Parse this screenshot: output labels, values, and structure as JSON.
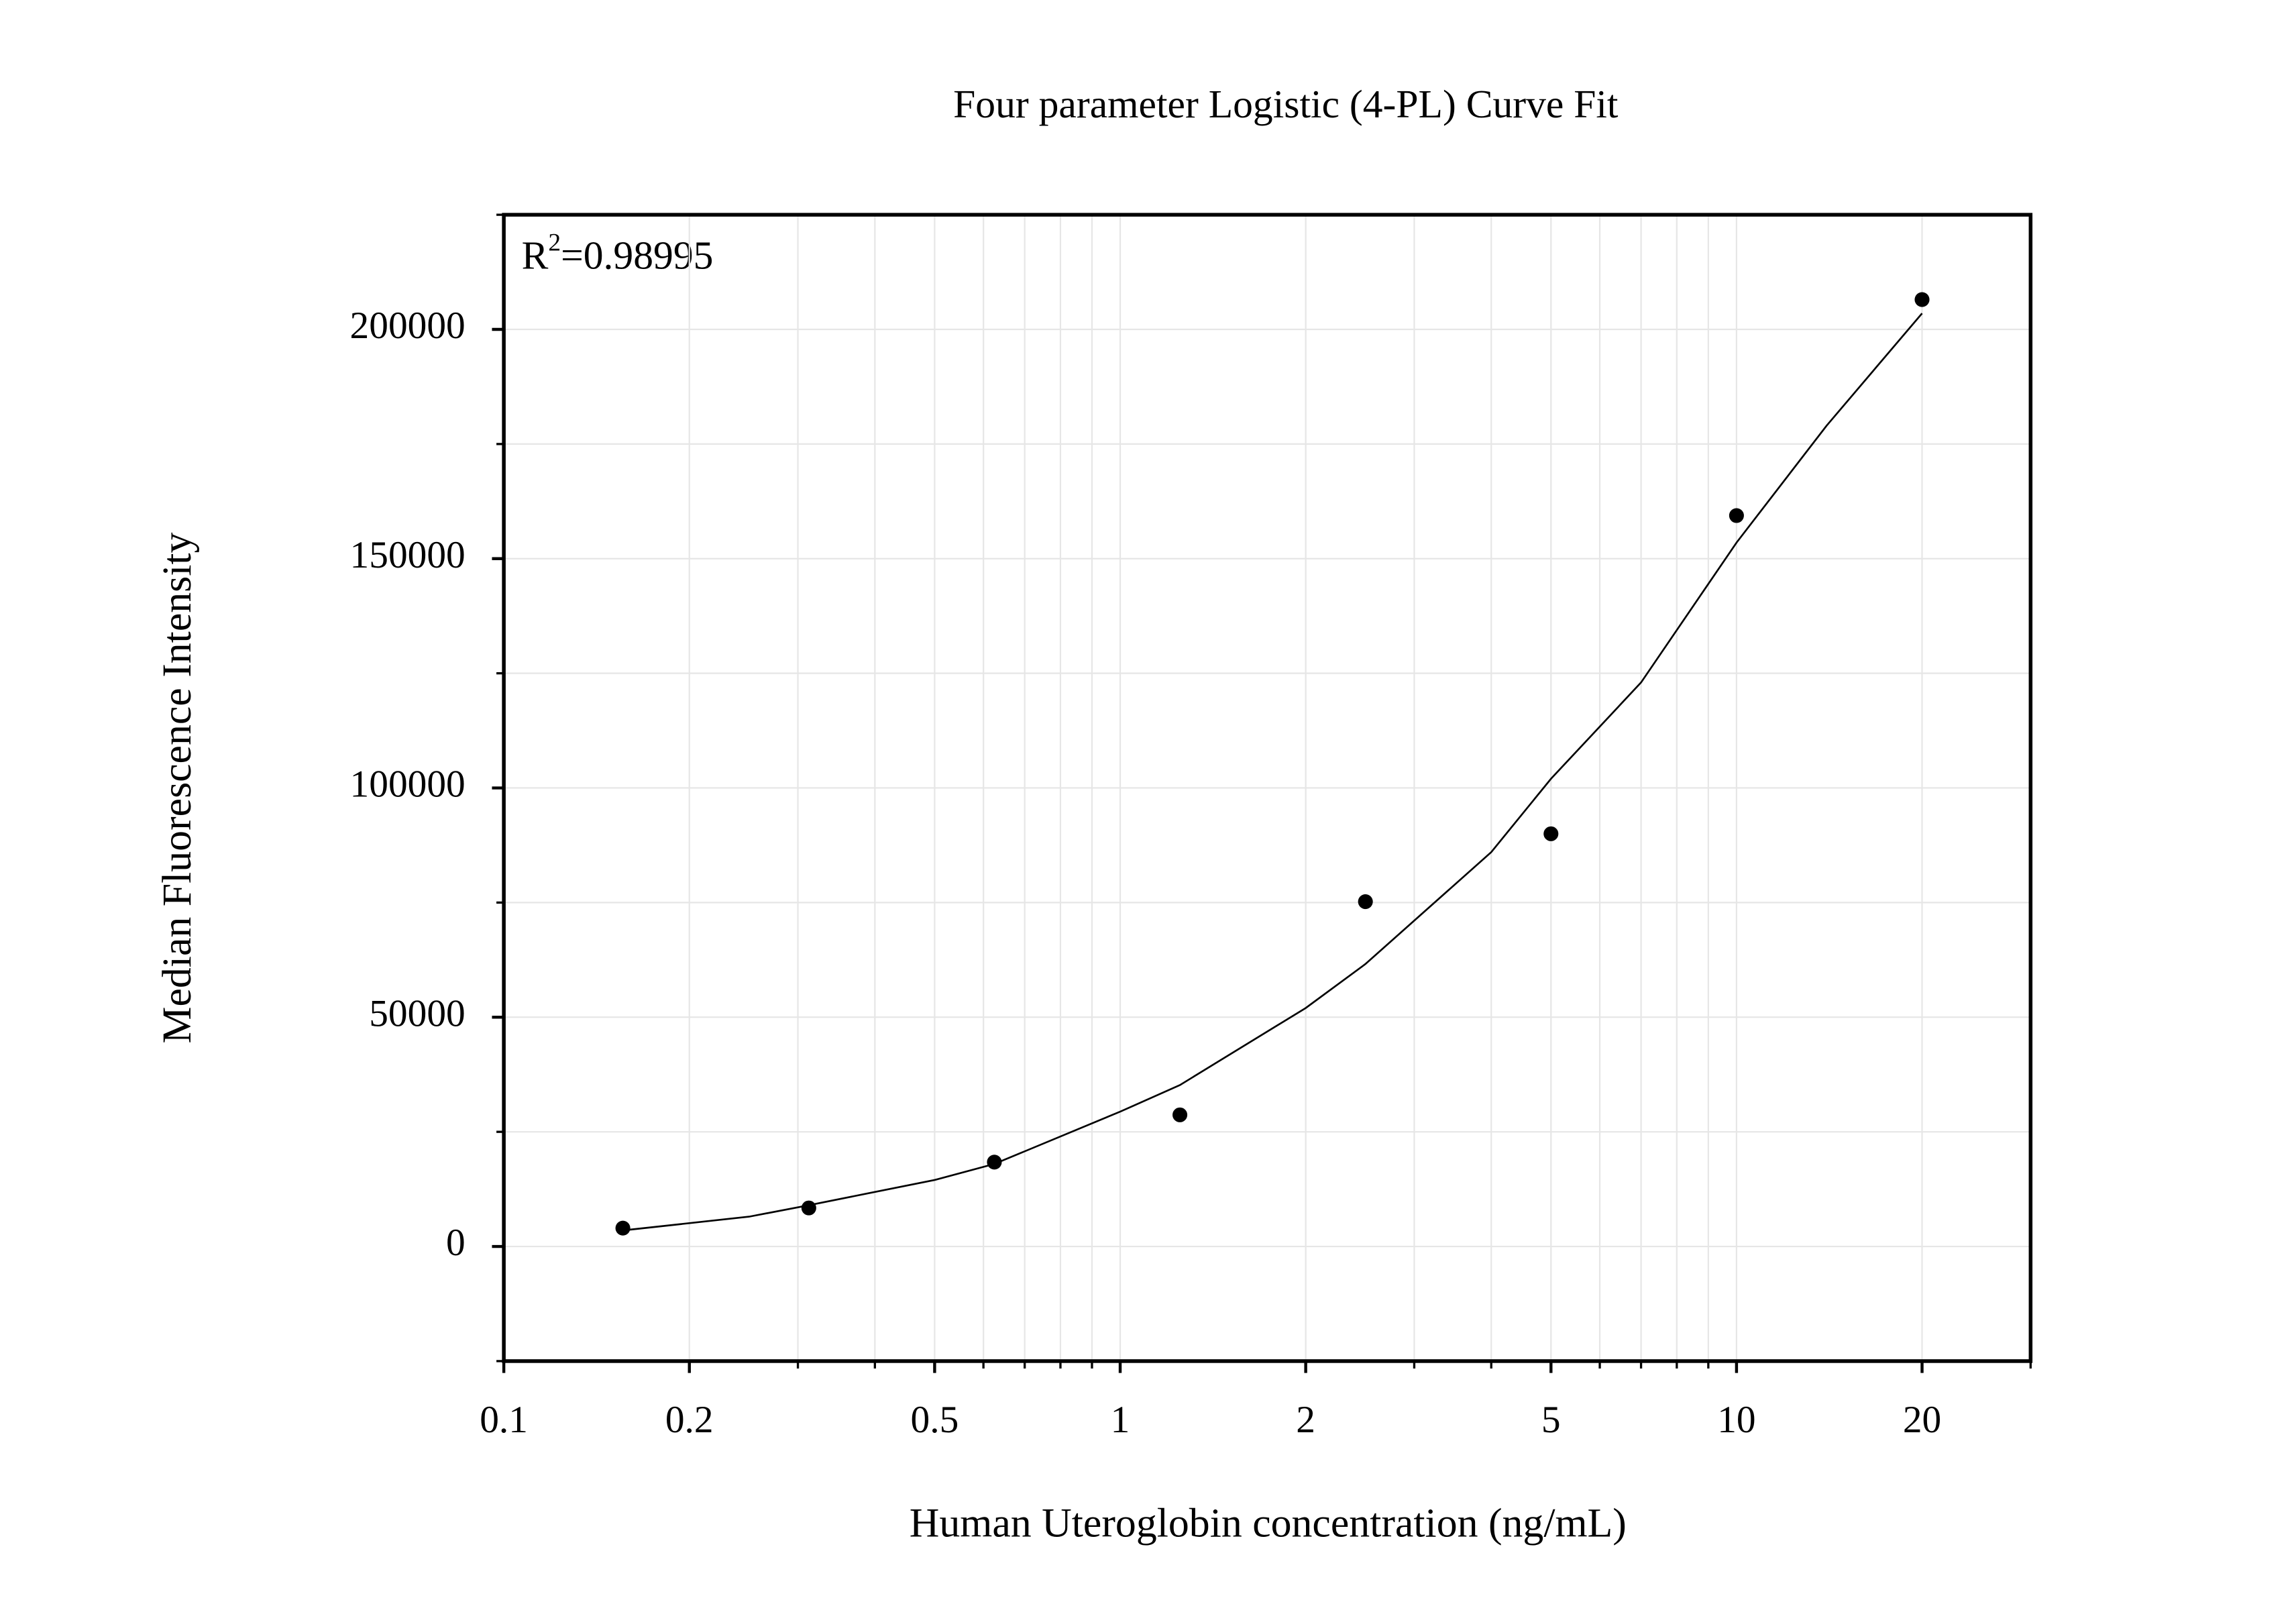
{
  "chart_data": {
    "type": "scatter",
    "title": "Four parameter Logistic (4-PL) Curve Fit",
    "x_label": "Human Uteroglobin concentration (ng/mL)",
    "y_label": "Median Fluorescence Intensity",
    "annotation": {
      "base": "R",
      "sup": "2",
      "rest": "=0.98995"
    },
    "x_scale": "log",
    "xlim": [
      0.1,
      30
    ],
    "ylim": [
      -25000,
      225000
    ],
    "xticks": [
      0.1,
      0.2,
      0.5,
      1,
      2,
      5,
      10,
      20
    ],
    "xminor": [
      0.3,
      0.4,
      0.6,
      0.7,
      0.8,
      0.9,
      3,
      4,
      6,
      7,
      8,
      9,
      30
    ],
    "yticks": [
      0,
      50000,
      100000,
      150000,
      200000
    ],
    "yminor": [
      -25000,
      25000,
      75000,
      125000,
      175000,
      225000
    ],
    "grid": true,
    "series": [
      {
        "mode": "markers",
        "color": "#000000",
        "x": [
          0.156,
          0.3125,
          0.625,
          1.25,
          2.5,
          5,
          10,
          20
        ],
        "values": [
          4000,
          8400,
          18400,
          28700,
          75200,
          90000,
          159400,
          206500
        ]
      },
      {
        "mode": "line",
        "color": "#000000",
        "x": [
          0.156,
          0.25,
          0.3125,
          0.5,
          0.625,
          1,
          1.25,
          2,
          2.5,
          4,
          5,
          7,
          10,
          14,
          20
        ],
        "values": [
          3500,
          6500,
          9000,
          14500,
          18000,
          29400,
          35200,
          52000,
          61600,
          86000,
          102000,
          123000,
          153500,
          179000,
          203500
        ]
      }
    ]
  }
}
